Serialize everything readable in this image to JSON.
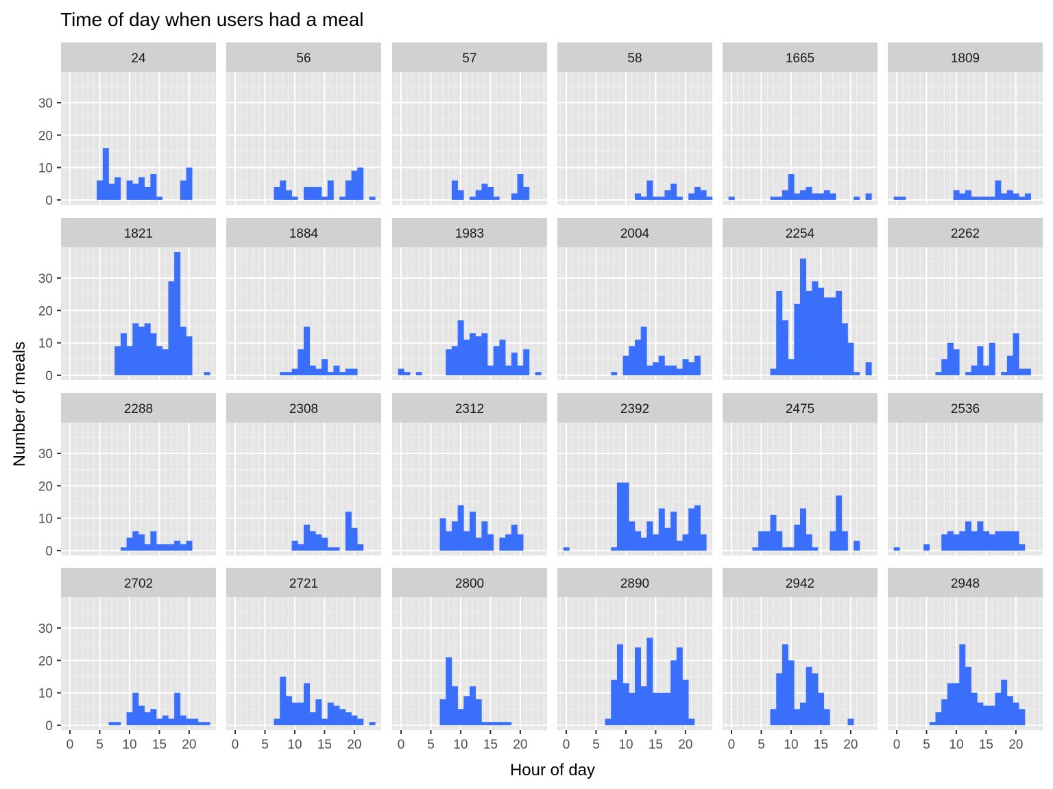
{
  "colors": {
    "bar": "#3a6ffb",
    "panel_background": "#e5e5e5",
    "strip_background": "#d1d1d1",
    "grid_major": "#ffffff",
    "grid_minor": "#f2f2f2",
    "tick": "#333333"
  },
  "chart_data": {
    "type": "bar",
    "title": "Time of day when users had a meal",
    "xlabel": "Hour of day",
    "ylabel": "Number of meals",
    "facet_layout": "4 rows x 6 columns",
    "xlim": [
      -1.5,
      24.5
    ],
    "ylim": [
      -1.5,
      39.5
    ],
    "x_ticks": [
      0,
      5,
      10,
      15,
      20
    ],
    "x_tick_labels": [
      "0",
      "5",
      "10",
      "15",
      "20"
    ],
    "y_ticks": [
      0,
      10,
      20,
      30
    ],
    "y_tick_labels": [
      "0",
      "10",
      "20",
      "30"
    ],
    "bin_width": 1,
    "grid": true,
    "panels": [
      {
        "label": "24",
        "x": [
          5,
          6,
          7,
          8,
          10,
          11,
          12,
          13,
          14,
          15,
          19,
          20
        ],
        "values": [
          6,
          16,
          5,
          7,
          6,
          5,
          7,
          4,
          8,
          1,
          6,
          10
        ]
      },
      {
        "label": "56",
        "x": [
          7,
          8,
          9,
          10,
          12,
          13,
          14,
          15,
          16,
          18,
          19,
          20,
          21,
          23
        ],
        "values": [
          4,
          6,
          3,
          1,
          4,
          4,
          4,
          1,
          6,
          1,
          6,
          9,
          10,
          1
        ]
      },
      {
        "label": "57",
        "x": [
          9,
          10,
          12,
          13,
          14,
          15,
          16,
          19,
          20,
          21
        ],
        "values": [
          6,
          3,
          1,
          3,
          5,
          4,
          1,
          2,
          8,
          4
        ]
      },
      {
        "label": "58",
        "x": [
          12,
          13,
          14,
          15,
          16,
          17,
          18,
          19,
          21,
          22,
          23,
          24
        ],
        "values": [
          2,
          1,
          6,
          1,
          1,
          3,
          5,
          1,
          2,
          4,
          3,
          1
        ]
      },
      {
        "label": "1665",
        "x": [
          0,
          7,
          8,
          9,
          10,
          11,
          12,
          13,
          14,
          15,
          16,
          17,
          21,
          23
        ],
        "values": [
          1,
          1,
          1,
          3,
          8,
          2,
          3,
          4,
          2,
          2,
          3,
          2,
          1,
          2
        ]
      },
      {
        "label": "1809",
        "x": [
          0,
          1,
          10,
          11,
          12,
          13,
          14,
          15,
          16,
          17,
          18,
          19,
          20,
          21,
          22
        ],
        "values": [
          1,
          1,
          3,
          2,
          3,
          1,
          1,
          1,
          1,
          6,
          2,
          3,
          2,
          1,
          2
        ]
      },
      {
        "label": "1821",
        "x": [
          8,
          9,
          10,
          11,
          12,
          13,
          14,
          15,
          16,
          17,
          18,
          19,
          20,
          23
        ],
        "values": [
          9,
          13,
          9,
          16,
          15,
          16,
          13,
          9,
          8,
          29,
          38,
          15,
          12,
          1
        ]
      },
      {
        "label": "1884",
        "x": [
          8,
          9,
          10,
          11,
          12,
          13,
          14,
          15,
          16,
          17,
          18,
          19,
          20
        ],
        "values": [
          1,
          1,
          2,
          8,
          15,
          3,
          2,
          5,
          1,
          3,
          1,
          2,
          2
        ]
      },
      {
        "label": "1983",
        "x": [
          0,
          1,
          3,
          8,
          9,
          10,
          11,
          12,
          13,
          14,
          15,
          16,
          17,
          18,
          19,
          20,
          21,
          23
        ],
        "values": [
          2,
          1,
          1,
          8,
          9,
          17,
          11,
          13,
          12,
          13,
          3,
          9,
          11,
          3,
          7,
          3,
          8,
          1
        ]
      },
      {
        "label": "2004",
        "x": [
          8,
          10,
          11,
          12,
          13,
          14,
          15,
          16,
          17,
          18,
          19,
          20,
          21,
          22
        ],
        "values": [
          1,
          6,
          9,
          11,
          15,
          3,
          4,
          6,
          3,
          3,
          2,
          5,
          4,
          6
        ]
      },
      {
        "label": "2254",
        "x": [
          7,
          8,
          9,
          10,
          11,
          12,
          13,
          14,
          15,
          16,
          17,
          18,
          19,
          20,
          21,
          23
        ],
        "values": [
          2,
          26,
          17,
          5,
          22,
          36,
          26,
          29,
          27,
          24,
          24,
          26,
          16,
          10,
          1,
          4
        ]
      },
      {
        "label": "2262",
        "x": [
          7,
          8,
          9,
          10,
          12,
          13,
          14,
          15,
          16,
          18,
          19,
          20,
          21,
          22
        ],
        "values": [
          1,
          5,
          10,
          8,
          1,
          3,
          9,
          3,
          10,
          1,
          6,
          13,
          2,
          2
        ]
      },
      {
        "label": "2288",
        "x": [
          9,
          10,
          11,
          12,
          13,
          14,
          15,
          16,
          17,
          18,
          19,
          20
        ],
        "values": [
          1,
          4,
          6,
          5,
          2,
          6,
          2,
          2,
          2,
          3,
          2,
          3
        ]
      },
      {
        "label": "2308",
        "x": [
          10,
          11,
          12,
          13,
          14,
          15,
          16,
          17,
          19,
          20,
          21
        ],
        "values": [
          3,
          2,
          8,
          6,
          5,
          4,
          1,
          1,
          12,
          7,
          2
        ]
      },
      {
        "label": "2312",
        "x": [
          7,
          8,
          9,
          10,
          11,
          12,
          13,
          14,
          15,
          17,
          18,
          19,
          20
        ],
        "values": [
          10,
          6,
          9,
          14,
          6,
          12,
          4,
          9,
          5,
          4,
          5,
          8,
          5
        ]
      },
      {
        "label": "2392",
        "x": [
          0,
          8,
          9,
          10,
          11,
          12,
          13,
          14,
          15,
          16,
          17,
          18,
          19,
          20,
          21,
          22,
          23
        ],
        "values": [
          1,
          1,
          21,
          21,
          9,
          6,
          4,
          9,
          5,
          13,
          7,
          12,
          3,
          5,
          13,
          14,
          5
        ]
      },
      {
        "label": "2475",
        "x": [
          4,
          5,
          6,
          7,
          8,
          9,
          10,
          11,
          12,
          13,
          14,
          17,
          18,
          19,
          21
        ],
        "values": [
          1,
          6,
          6,
          11,
          6,
          1,
          1,
          8,
          13,
          5,
          1,
          6,
          17,
          6,
          3
        ]
      },
      {
        "label": "2536",
        "x": [
          0,
          5,
          8,
          9,
          10,
          11,
          12,
          13,
          14,
          15,
          16,
          17,
          18,
          19,
          20,
          21
        ],
        "values": [
          1,
          2,
          5,
          6,
          5,
          6,
          9,
          6,
          9,
          6,
          5,
          6,
          6,
          6,
          6,
          2
        ]
      },
      {
        "label": "2702",
        "x": [
          7,
          8,
          10,
          11,
          12,
          13,
          14,
          15,
          16,
          17,
          18,
          19,
          20,
          21,
          22,
          23
        ],
        "values": [
          1,
          1,
          4,
          10,
          6,
          4,
          5,
          2,
          3,
          2,
          10,
          3,
          2,
          2,
          1,
          1
        ]
      },
      {
        "label": "2721",
        "x": [
          7,
          8,
          9,
          10,
          11,
          12,
          13,
          14,
          15,
          16,
          17,
          18,
          19,
          20,
          21,
          23
        ],
        "values": [
          2,
          15,
          9,
          7,
          7,
          13,
          4,
          8,
          2,
          7,
          6,
          5,
          4,
          3,
          2,
          1
        ]
      },
      {
        "label": "2800",
        "x": [
          7,
          8,
          9,
          10,
          11,
          12,
          13,
          14,
          15,
          16,
          17,
          18
        ],
        "values": [
          8,
          21,
          12,
          5,
          9,
          12,
          8,
          1,
          1,
          1,
          1,
          1
        ]
      },
      {
        "label": "2890",
        "x": [
          7,
          8,
          9,
          10,
          11,
          12,
          13,
          14,
          15,
          16,
          17,
          18,
          19,
          20,
          21
        ],
        "values": [
          2,
          14,
          25,
          13,
          10,
          24,
          12,
          27,
          10,
          10,
          10,
          20,
          24,
          14,
          2
        ]
      },
      {
        "label": "2942",
        "x": [
          7,
          8,
          9,
          10,
          11,
          12,
          13,
          14,
          15,
          16,
          20
        ],
        "values": [
          5,
          16,
          25,
          20,
          5,
          7,
          18,
          16,
          10,
          5,
          2
        ]
      },
      {
        "label": "2948",
        "x": [
          6,
          7,
          8,
          9,
          10,
          11,
          12,
          13,
          14,
          15,
          16,
          17,
          18,
          19,
          20,
          21
        ],
        "values": [
          1,
          4,
          8,
          13,
          13,
          25,
          18,
          10,
          7,
          6,
          6,
          10,
          14,
          9,
          7,
          5
        ]
      }
    ]
  }
}
